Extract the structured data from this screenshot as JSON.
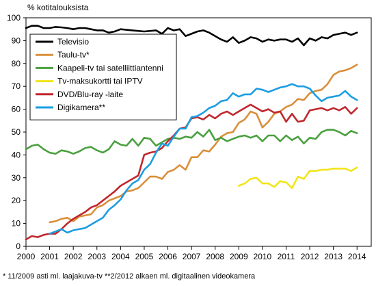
{
  "chart_data": {
    "type": "line",
    "title": "",
    "ylabel": "% kotitalouksista",
    "xlabel": "",
    "xlim": [
      2000,
      2014.6
    ],
    "ylim": [
      0,
      100
    ],
    "x_ticks": [
      2000,
      2001,
      2002,
      2003,
      2004,
      2005,
      2006,
      2007,
      2008,
      2009,
      2010,
      2011,
      2012,
      2013,
      2014
    ],
    "y_ticks": [
      0,
      10,
      20,
      30,
      40,
      50,
      60,
      70,
      80,
      90,
      100
    ],
    "grid": false,
    "legend_position": "top-left",
    "footnote": "* 11/2009 asti ml. laajakuva-tv  **2/2012 alkaen ml. digitaalinen videokamera",
    "series": [
      {
        "name": "Televisio",
        "color": "#000000",
        "points": [
          [
            2000.0,
            95.5
          ],
          [
            2000.25,
            96.5
          ],
          [
            2000.5,
            96.5
          ],
          [
            2000.75,
            95.5
          ],
          [
            2001.0,
            95.5
          ],
          [
            2001.25,
            96.0
          ],
          [
            2001.5,
            95.8
          ],
          [
            2001.75,
            95.5
          ],
          [
            2002.0,
            95.0
          ],
          [
            2002.25,
            95.5
          ],
          [
            2002.5,
            95.5
          ],
          [
            2002.75,
            95.0
          ],
          [
            2003.0,
            94.5
          ],
          [
            2003.25,
            94.5
          ],
          [
            2003.5,
            93.5
          ],
          [
            2003.75,
            94.0
          ],
          [
            2004.0,
            95.0
          ],
          [
            2004.5,
            94.5
          ],
          [
            2005.0,
            94.0
          ],
          [
            2005.5,
            94.5
          ],
          [
            2005.75,
            93.0
          ],
          [
            2006.0,
            95.5
          ],
          [
            2006.25,
            94.5
          ],
          [
            2006.5,
            95.0
          ],
          [
            2006.75,
            92.0
          ],
          [
            2007.0,
            93.0
          ],
          [
            2007.25,
            94.0
          ],
          [
            2007.5,
            94.5
          ],
          [
            2007.75,
            93.5
          ],
          [
            2008.0,
            92.0
          ],
          [
            2008.25,
            90.5
          ],
          [
            2008.5,
            89.5
          ],
          [
            2008.75,
            91.5
          ],
          [
            2009.0,
            89.0
          ],
          [
            2009.25,
            90.0
          ],
          [
            2009.5,
            91.5
          ],
          [
            2009.75,
            91.0
          ],
          [
            2010.0,
            89.5
          ],
          [
            2010.25,
            90.5
          ],
          [
            2010.5,
            90.0
          ],
          [
            2010.75,
            90.5
          ],
          [
            2011.0,
            90.5
          ],
          [
            2011.25,
            89.5
          ],
          [
            2011.5,
            91.0
          ],
          [
            2011.75,
            88.0
          ],
          [
            2012.0,
            91.0
          ],
          [
            2012.25,
            90.0
          ],
          [
            2012.5,
            91.5
          ],
          [
            2012.75,
            91.0
          ],
          [
            2013.0,
            92.5
          ],
          [
            2013.25,
            93.0
          ],
          [
            2013.5,
            93.5
          ],
          [
            2013.75,
            92.5
          ],
          [
            2014.0,
            93.5
          ]
        ]
      },
      {
        "name": "Taulu-tv*",
        "color": "#d98f3a",
        "points": [
          [
            2001.0,
            10.5
          ],
          [
            2001.25,
            11.0
          ],
          [
            2001.5,
            12.0
          ],
          [
            2001.75,
            12.5
          ],
          [
            2002.0,
            11.0
          ],
          [
            2002.25,
            13.0
          ],
          [
            2002.5,
            13.5
          ],
          [
            2002.75,
            14.0
          ],
          [
            2003.0,
            17.0
          ],
          [
            2003.25,
            18.0
          ],
          [
            2003.5,
            20.0
          ],
          [
            2003.75,
            21.0
          ],
          [
            2004.0,
            22.0
          ],
          [
            2004.25,
            24.0
          ],
          [
            2004.5,
            24.5
          ],
          [
            2004.75,
            25.5
          ],
          [
            2005.0,
            28.0
          ],
          [
            2005.25,
            30.5
          ],
          [
            2005.5,
            30.5
          ],
          [
            2005.75,
            29.5
          ],
          [
            2006.0,
            32.5
          ],
          [
            2006.25,
            33.5
          ],
          [
            2006.5,
            35.5
          ],
          [
            2006.75,
            33.5
          ],
          [
            2007.0,
            39.0
          ],
          [
            2007.25,
            39.0
          ],
          [
            2007.5,
            42.0
          ],
          [
            2007.75,
            41.5
          ],
          [
            2008.0,
            44.5
          ],
          [
            2008.25,
            48.0
          ],
          [
            2008.5,
            49.5
          ],
          [
            2008.75,
            50.0
          ],
          [
            2009.0,
            54.0
          ],
          [
            2009.25,
            55.5
          ],
          [
            2009.5,
            59.0
          ],
          [
            2009.75,
            58.0
          ],
          [
            2010.0,
            52.0
          ],
          [
            2010.25,
            54.5
          ],
          [
            2010.5,
            58.0
          ],
          [
            2010.75,
            59.0
          ],
          [
            2011.0,
            61.0
          ],
          [
            2011.25,
            62.0
          ],
          [
            2011.5,
            64.5
          ],
          [
            2011.75,
            64.0
          ],
          [
            2012.0,
            67.0
          ],
          [
            2012.25,
            68.0
          ],
          [
            2012.5,
            68.5
          ],
          [
            2012.75,
            71.0
          ],
          [
            2013.0,
            75.0
          ],
          [
            2013.25,
            76.5
          ],
          [
            2013.5,
            77.0
          ],
          [
            2013.75,
            78.0
          ],
          [
            2014.0,
            79.5
          ]
        ]
      },
      {
        "name": "Kaapeli-tv tai satelliittiantenni",
        "color": "#4aa03f",
        "points": [
          [
            2000.0,
            42.5
          ],
          [
            2000.25,
            44.0
          ],
          [
            2000.5,
            44.5
          ],
          [
            2000.75,
            42.5
          ],
          [
            2001.0,
            41.0
          ],
          [
            2001.25,
            40.5
          ],
          [
            2001.5,
            42.0
          ],
          [
            2001.75,
            41.5
          ],
          [
            2002.0,
            40.5
          ],
          [
            2002.25,
            41.5
          ],
          [
            2002.5,
            43.0
          ],
          [
            2002.75,
            43.5
          ],
          [
            2003.0,
            42.0
          ],
          [
            2003.25,
            41.0
          ],
          [
            2003.5,
            42.5
          ],
          [
            2003.75,
            46.0
          ],
          [
            2004.0,
            44.5
          ],
          [
            2004.25,
            44.0
          ],
          [
            2004.5,
            47.0
          ],
          [
            2004.75,
            44.0
          ],
          [
            2005.0,
            47.5
          ],
          [
            2005.25,
            47.0
          ],
          [
            2005.5,
            44.0
          ],
          [
            2005.75,
            45.5
          ],
          [
            2006.0,
            47.0
          ],
          [
            2006.25,
            47.5
          ],
          [
            2006.5,
            47.0
          ],
          [
            2006.75,
            48.0
          ],
          [
            2007.0,
            47.5
          ],
          [
            2007.25,
            50.0
          ],
          [
            2007.5,
            48.0
          ],
          [
            2007.75,
            51.0
          ],
          [
            2008.0,
            46.5
          ],
          [
            2008.25,
            47.5
          ],
          [
            2008.5,
            46.0
          ],
          [
            2008.75,
            47.0
          ],
          [
            2009.0,
            48.0
          ],
          [
            2009.25,
            48.5
          ],
          [
            2009.5,
            47.5
          ],
          [
            2009.75,
            48.5
          ],
          [
            2010.0,
            46.0
          ],
          [
            2010.25,
            48.5
          ],
          [
            2010.5,
            48.5
          ],
          [
            2010.75,
            46.0
          ],
          [
            2011.0,
            48.5
          ],
          [
            2011.25,
            46.5
          ],
          [
            2011.5,
            48.0
          ],
          [
            2011.75,
            45.0
          ],
          [
            2012.0,
            47.5
          ],
          [
            2012.25,
            47.0
          ],
          [
            2012.5,
            50.0
          ],
          [
            2012.75,
            51.0
          ],
          [
            2013.0,
            51.0
          ],
          [
            2013.25,
            50.0
          ],
          [
            2013.5,
            48.5
          ],
          [
            2013.75,
            50.5
          ],
          [
            2014.0,
            49.5
          ]
        ]
      },
      {
        "name": "Tv-maksukortti tai IPTV",
        "color": "#f2e41a",
        "points": [
          [
            2009.0,
            26.5
          ],
          [
            2009.25,
            27.5
          ],
          [
            2009.5,
            29.5
          ],
          [
            2009.75,
            30.0
          ],
          [
            2010.0,
            27.5
          ],
          [
            2010.25,
            27.5
          ],
          [
            2010.5,
            26.0
          ],
          [
            2010.75,
            28.5
          ],
          [
            2011.0,
            28.0
          ],
          [
            2011.25,
            25.5
          ],
          [
            2011.5,
            30.5
          ],
          [
            2011.75,
            29.5
          ],
          [
            2012.0,
            33.0
          ],
          [
            2012.25,
            33.0
          ],
          [
            2012.5,
            33.5
          ],
          [
            2012.75,
            33.5
          ],
          [
            2013.0,
            34.0
          ],
          [
            2013.25,
            34.0
          ],
          [
            2013.5,
            34.0
          ],
          [
            2013.75,
            33.0
          ],
          [
            2014.0,
            34.5
          ]
        ]
      },
      {
        "name": "DVD/Blu-ray -laite",
        "color": "#c0272d",
        "points": [
          [
            2000.0,
            3.0
          ],
          [
            2000.25,
            4.5
          ],
          [
            2000.5,
            4.0
          ],
          [
            2000.75,
            5.0
          ],
          [
            2001.0,
            5.5
          ],
          [
            2001.25,
            5.5
          ],
          [
            2001.5,
            7.5
          ],
          [
            2001.75,
            10.0
          ],
          [
            2002.0,
            12.0
          ],
          [
            2002.25,
            13.5
          ],
          [
            2002.5,
            15.0
          ],
          [
            2002.75,
            17.0
          ],
          [
            2003.0,
            18.0
          ],
          [
            2003.25,
            20.0
          ],
          [
            2003.5,
            22.0
          ],
          [
            2003.75,
            24.0
          ],
          [
            2004.0,
            26.5
          ],
          [
            2004.25,
            28.0
          ],
          [
            2004.5,
            29.5
          ],
          [
            2004.75,
            31.0
          ],
          [
            2005.0,
            40.0
          ],
          [
            2005.25,
            41.0
          ],
          [
            2005.5,
            41.5
          ],
          [
            2005.75,
            43.0
          ],
          [
            2006.0,
            46.0
          ],
          [
            2006.25,
            48.5
          ],
          [
            2006.5,
            51.5
          ],
          [
            2006.75,
            52.0
          ],
          [
            2007.0,
            56.0
          ],
          [
            2007.25,
            56.5
          ],
          [
            2007.5,
            55.5
          ],
          [
            2007.75,
            57.5
          ],
          [
            2008.0,
            56.0
          ],
          [
            2008.25,
            58.0
          ],
          [
            2008.5,
            59.0
          ],
          [
            2008.75,
            57.5
          ],
          [
            2009.0,
            59.0
          ],
          [
            2009.25,
            60.5
          ],
          [
            2009.5,
            62.0
          ],
          [
            2009.75,
            60.5
          ],
          [
            2010.0,
            59.0
          ],
          [
            2010.25,
            60.0
          ],
          [
            2010.5,
            58.5
          ],
          [
            2010.75,
            59.0
          ],
          [
            2011.0,
            54.5
          ],
          [
            2011.25,
            58.0
          ],
          [
            2011.5,
            54.5
          ],
          [
            2011.75,
            55.0
          ],
          [
            2012.0,
            59.5
          ],
          [
            2012.25,
            60.0
          ],
          [
            2012.5,
            60.5
          ],
          [
            2012.75,
            59.5
          ],
          [
            2013.0,
            60.5
          ],
          [
            2013.25,
            59.5
          ],
          [
            2013.5,
            61.0
          ],
          [
            2013.75,
            58.0
          ],
          [
            2014.0,
            60.5
          ]
        ]
      },
      {
        "name": "Digikamera**",
        "color": "#1b9de2",
        "points": [
          [
            2001.0,
            5.5
          ],
          [
            2001.25,
            6.5
          ],
          [
            2001.5,
            7.5
          ],
          [
            2001.75,
            6.0
          ],
          [
            2002.0,
            7.0
          ],
          [
            2002.25,
            7.5
          ],
          [
            2002.5,
            8.0
          ],
          [
            2002.75,
            9.5
          ],
          [
            2003.0,
            11.0
          ],
          [
            2003.25,
            12.5
          ],
          [
            2003.5,
            16.0
          ],
          [
            2003.75,
            18.0
          ],
          [
            2004.0,
            20.5
          ],
          [
            2004.25,
            24.5
          ],
          [
            2004.5,
            27.5
          ],
          [
            2004.75,
            29.0
          ],
          [
            2005.0,
            33.5
          ],
          [
            2005.25,
            36.0
          ],
          [
            2005.5,
            41.0
          ],
          [
            2005.75,
            45.0
          ],
          [
            2006.0,
            44.0
          ],
          [
            2006.25,
            48.0
          ],
          [
            2006.5,
            51.5
          ],
          [
            2006.75,
            51.5
          ],
          [
            2007.0,
            56.5
          ],
          [
            2007.25,
            57.0
          ],
          [
            2007.5,
            58.5
          ],
          [
            2007.75,
            60.5
          ],
          [
            2008.0,
            61.5
          ],
          [
            2008.25,
            63.5
          ],
          [
            2008.5,
            64.0
          ],
          [
            2008.75,
            67.0
          ],
          [
            2009.0,
            65.5
          ],
          [
            2009.25,
            66.5
          ],
          [
            2009.5,
            66.5
          ],
          [
            2009.75,
            69.0
          ],
          [
            2010.0,
            68.5
          ],
          [
            2010.25,
            67.5
          ],
          [
            2010.5,
            68.5
          ],
          [
            2010.75,
            69.5
          ],
          [
            2011.0,
            70.0
          ],
          [
            2011.25,
            71.0
          ],
          [
            2011.5,
            70.0
          ],
          [
            2011.75,
            70.0
          ],
          [
            2012.0,
            69.0
          ],
          [
            2012.25,
            66.0
          ],
          [
            2012.5,
            63.5
          ],
          [
            2012.75,
            65.0
          ],
          [
            2013.0,
            65.5
          ],
          [
            2013.25,
            66.0
          ],
          [
            2013.5,
            68.0
          ],
          [
            2013.75,
            65.5
          ],
          [
            2014.0,
            64.0
          ]
        ]
      }
    ]
  }
}
